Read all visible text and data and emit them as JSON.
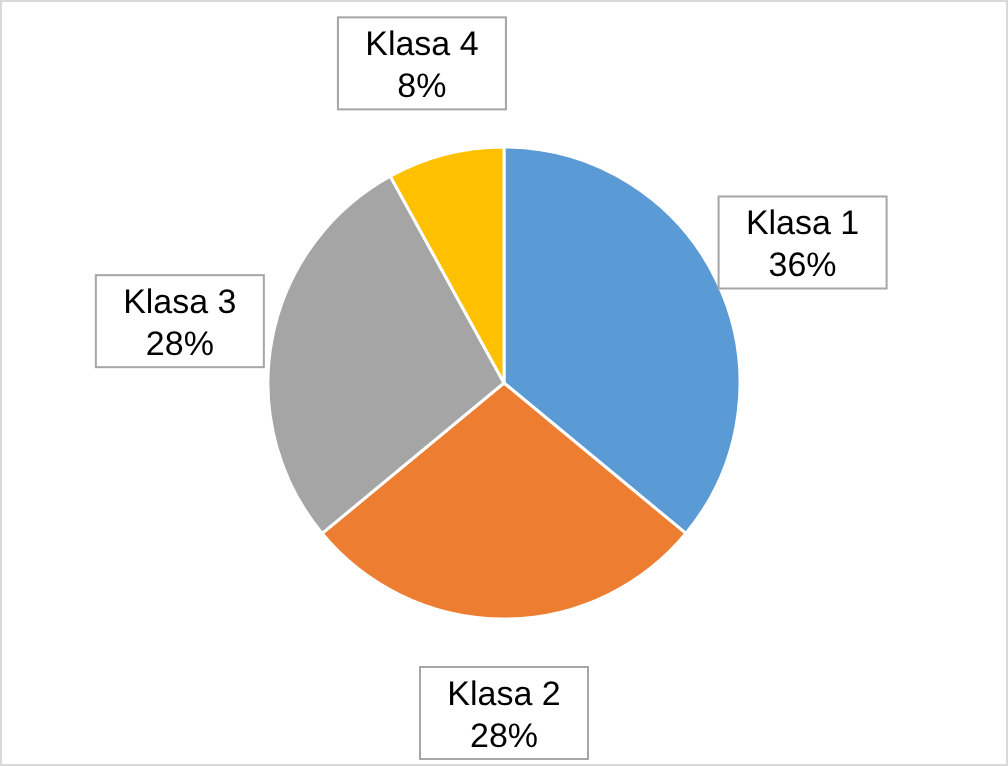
{
  "chart_data": {
    "type": "pie",
    "categories": [
      "Klasa 1",
      "Klasa 2",
      "Klasa 3",
      "Klasa 4"
    ],
    "values": [
      36,
      28,
      28,
      8
    ],
    "value_labels": [
      "36%",
      "28%",
      "28%",
      "8%"
    ],
    "colors": [
      "#5b9bd5",
      "#ed7d31",
      "#a5a5a5",
      "#ffc000"
    ]
  }
}
